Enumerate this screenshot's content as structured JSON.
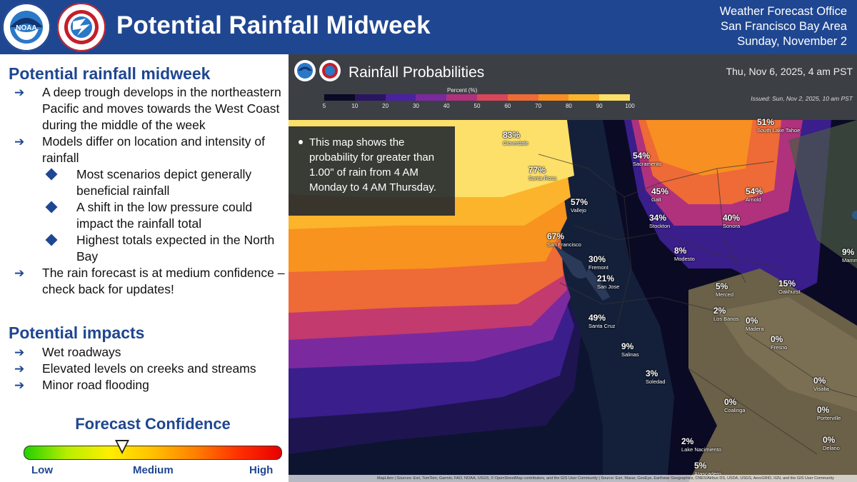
{
  "header": {
    "title": "Potential Rainfall Midweek",
    "office_lines": [
      "Weather Forecast Office",
      "San Francisco Bay Area",
      "Sunday, November 2"
    ]
  },
  "logos": {
    "noaa_text": "NOAA",
    "nws_text": "NATIONAL WEATHER SERVICE"
  },
  "left_panel": {
    "section1_title": "Potential rainfall midweek",
    "section1_items": [
      {
        "level": 1,
        "text": "A deep trough develops in the northeastern Pacific and moves towards the West Coast during the middle of the week"
      },
      {
        "level": 1,
        "text": "Models differ on location and intensity of rainfall"
      },
      {
        "level": 2,
        "text": "Most scenarios depict generally beneficial rainfall"
      },
      {
        "level": 2,
        "text": "A shift in the low pressure could impact the rainfall total"
      },
      {
        "level": 2,
        "text": "Highest totals expected in the North Bay"
      },
      {
        "level": 1,
        "text": "The rain forecast is at medium confidence – check back for updates!"
      }
    ],
    "section2_title": "Potential impacts",
    "section2_items": [
      "Wet roadways",
      "Elevated levels on creeks and streams",
      "Minor road flooding"
    ]
  },
  "confidence": {
    "title": "Forecast Confidence",
    "low": "Low",
    "medium": "Medium",
    "high": "High",
    "level": "medium",
    "marker_fraction": 0.38,
    "gradient_colors": [
      "#22d000",
      "#b8ee00",
      "#ffef00",
      "#ffc000",
      "#ff7f00",
      "#ff3000",
      "#e80000"
    ]
  },
  "map": {
    "title": "Rainfall Probabilities",
    "valid_time": "Thu, Nov 6, 2025, 4 am PST",
    "issued": "Issued: Sun, Nov 2, 2025, 10 am PST",
    "legend_title": "Percent (%)",
    "legend_ticks": [
      "5",
      "10",
      "20",
      "30",
      "40",
      "50",
      "60",
      "70",
      "80",
      "90",
      "100"
    ],
    "legend_colors": [
      "#0a0a24",
      "#2a1560",
      "#4a22a0",
      "#7a2a9e",
      "#b0327c",
      "#d8465a",
      "#ee6a36",
      "#f78f22",
      "#fbb42c",
      "#fde06a"
    ],
    "callout": "This map shows the probability for greater than 1.00\" of rain from 4 AM Monday to 4 AM Thursday.",
    "attribution": "MapLibre | Sources: Esri, TomTom, Garmin, FAO, NOAA, USGS, © OpenStreetMap contributors, and the GIS User Community | Source: Esri, Maxar, GeoEye, Earthstar Geographics, CNES/Airbus DS, USDA, USGS, AeroGRID, IGN, and the GIS User Community",
    "cities": [
      {
        "name": "Cloverdale",
        "pct": "83%"
      },
      {
        "name": "Santa Rosa",
        "pct": "77%"
      },
      {
        "name": "Sacramento",
        "pct": "54%"
      },
      {
        "name": "South Lake Tahoe",
        "pct": "51%"
      },
      {
        "name": "Vallejo",
        "pct": "57%"
      },
      {
        "name": "Galt",
        "pct": "45%"
      },
      {
        "name": "Arnold",
        "pct": "54%"
      },
      {
        "name": "San Francisco",
        "pct": "67%"
      },
      {
        "name": "Stockton",
        "pct": "34%"
      },
      {
        "name": "Sonora",
        "pct": "40%"
      },
      {
        "name": "Fremont",
        "pct": "30%"
      },
      {
        "name": "Modesto",
        "pct": "8%"
      },
      {
        "name": "Mammoth Lakes",
        "pct": "9%"
      },
      {
        "name": "San Jose",
        "pct": "21%"
      },
      {
        "name": "Merced",
        "pct": "5%"
      },
      {
        "name": "Oakhurst",
        "pct": "15%"
      },
      {
        "name": "Los Banos",
        "pct": "2%"
      },
      {
        "name": "Santa Cruz",
        "pct": "49%"
      },
      {
        "name": "Madera",
        "pct": "0%"
      },
      {
        "name": "Salinas",
        "pct": "9%"
      },
      {
        "name": "Fresno",
        "pct": "0%"
      },
      {
        "name": "Soledad",
        "pct": "3%"
      },
      {
        "name": "Visalia",
        "pct": "0%"
      },
      {
        "name": "Coalinga",
        "pct": "0%"
      },
      {
        "name": "Porterville",
        "pct": "0%"
      },
      {
        "name": "Lake Nacimiento",
        "pct": "2%"
      },
      {
        "name": "Delano",
        "pct": "0%"
      },
      {
        "name": "Atascadero",
        "pct": "5%"
      }
    ]
  }
}
